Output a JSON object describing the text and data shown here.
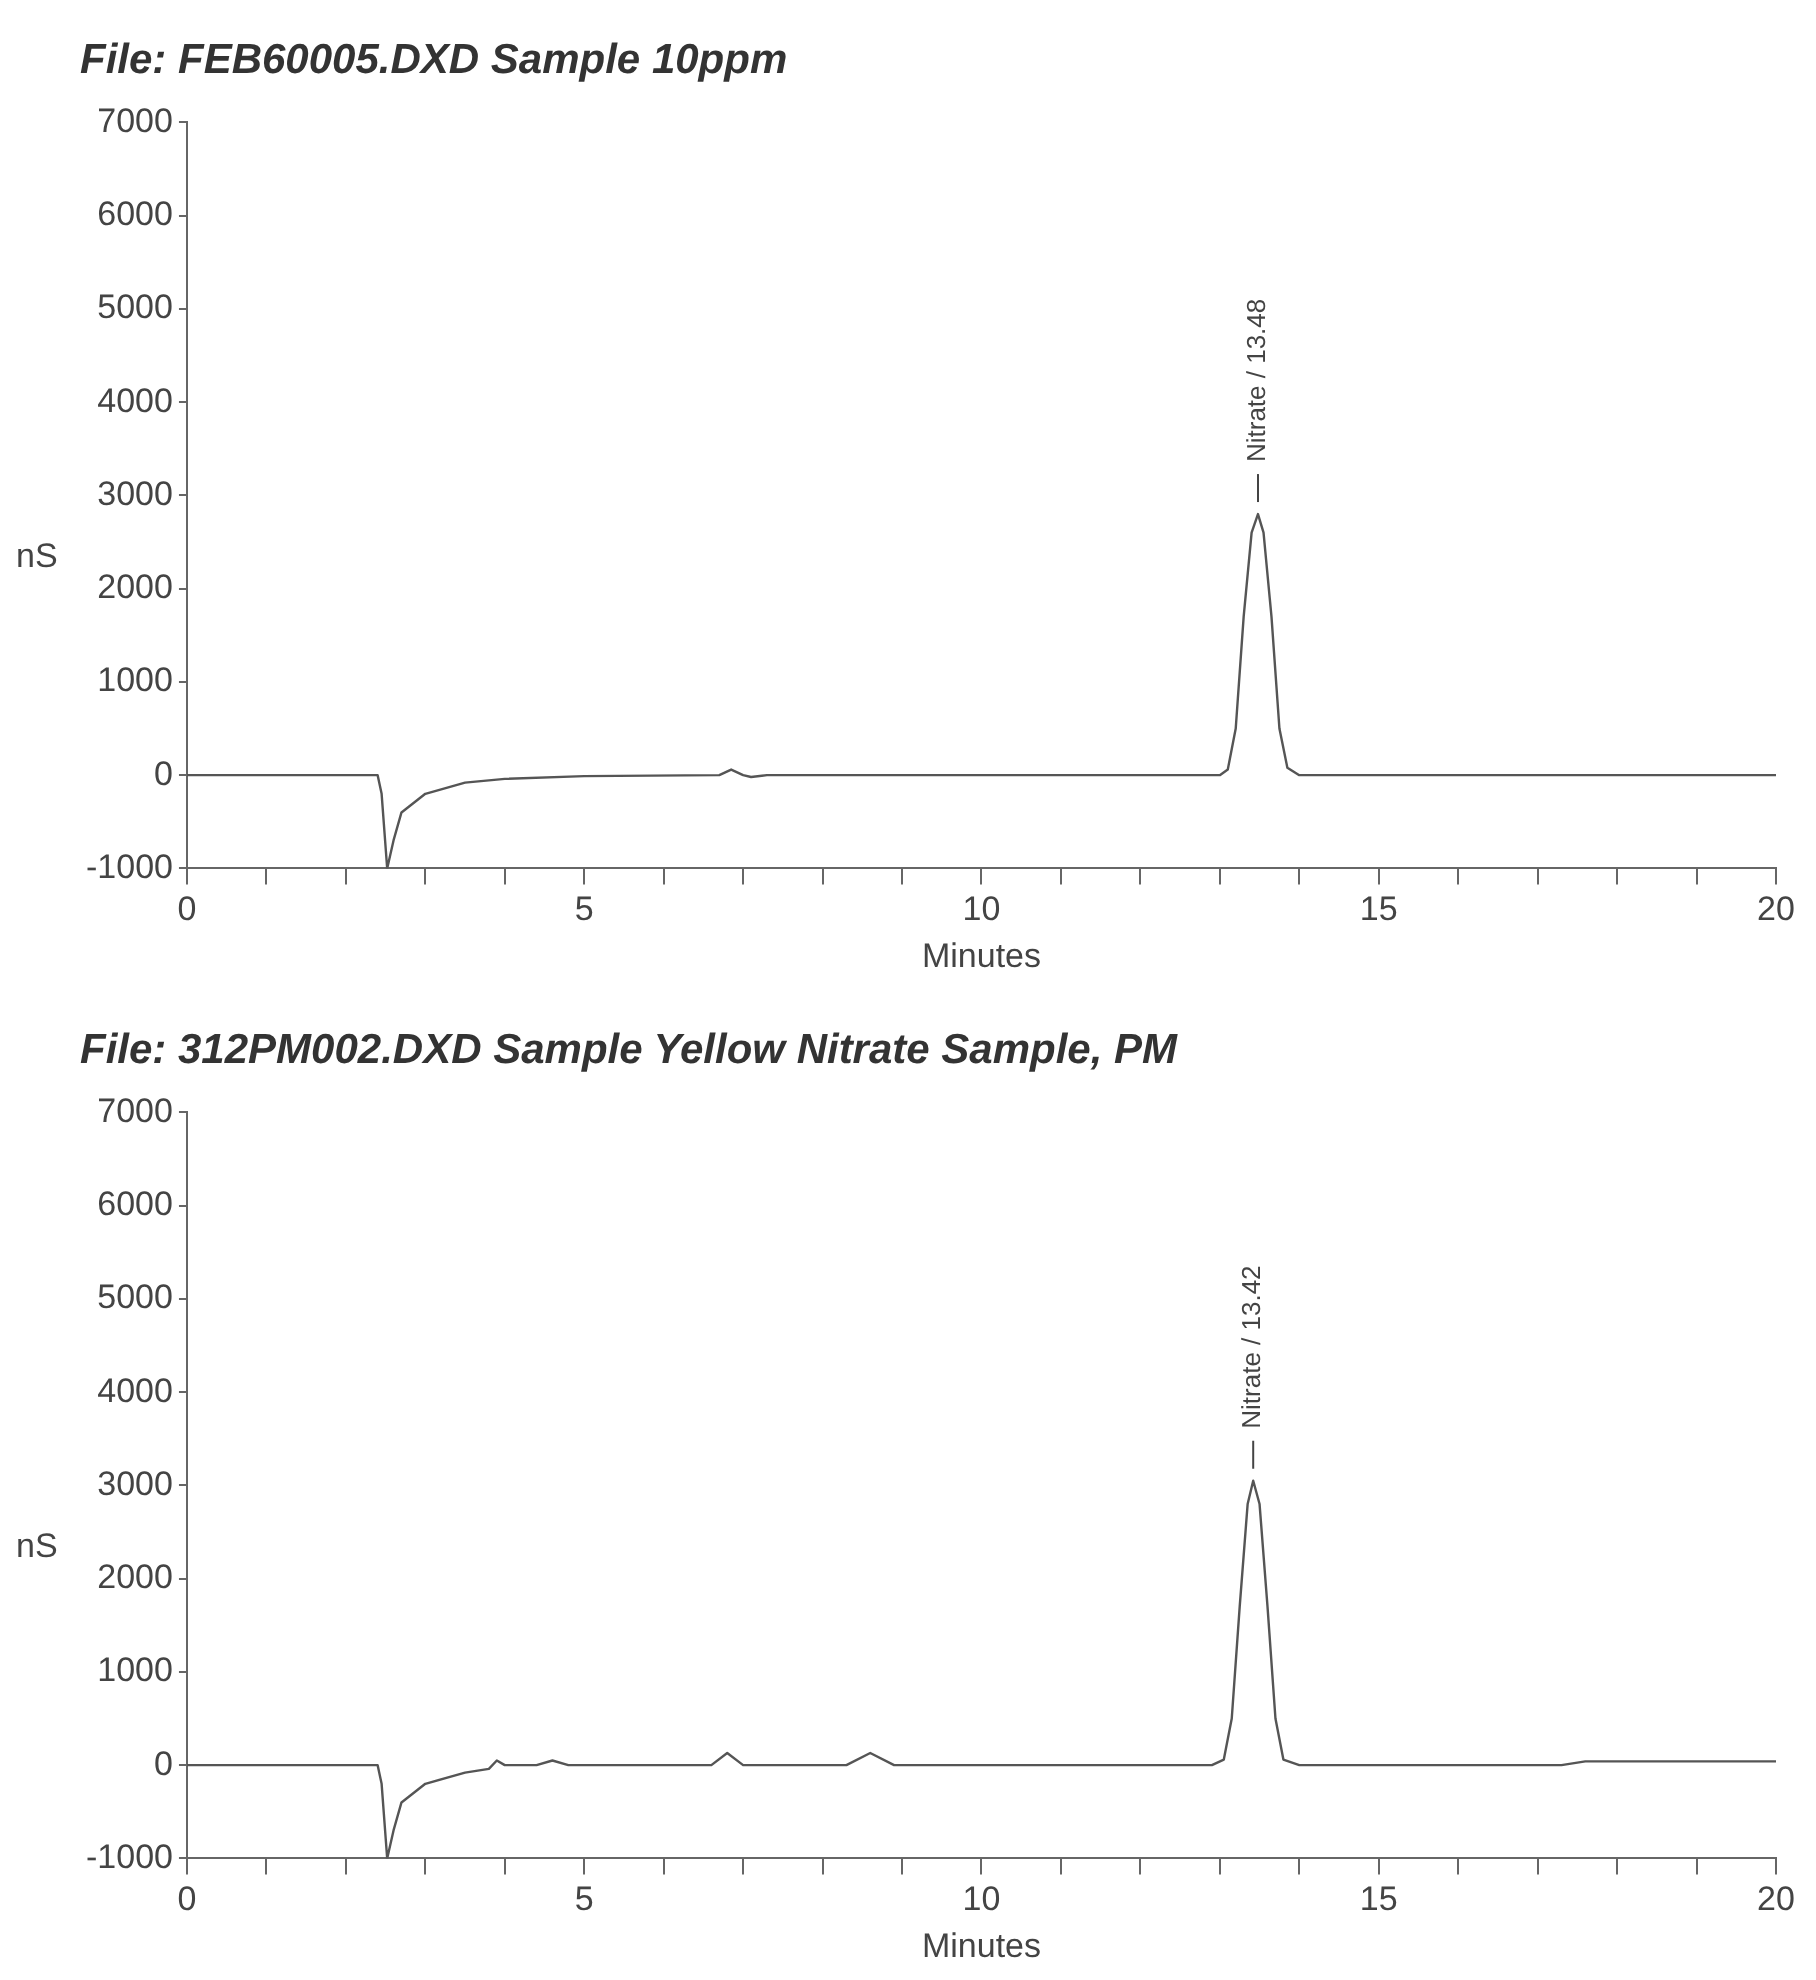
{
  "chart_data": [
    {
      "type": "line",
      "title": "File: FEB60005.DXD Sample 10ppm",
      "xlabel": "Minutes",
      "ylabel": "nS",
      "marker": "none",
      "grid": false,
      "legend": false,
      "xlim": [
        0,
        20
      ],
      "ylim": [
        -1000,
        7000
      ],
      "xticks": [
        0,
        {
          "value": 1,
          "label": null
        },
        {
          "value": 2,
          "label": null
        },
        {
          "value": 3,
          "label": null
        },
        {
          "value": 4,
          "label": null
        },
        5,
        {
          "value": 6,
          "label": null
        },
        {
          "value": 7,
          "label": null
        },
        {
          "value": 8,
          "label": null
        },
        {
          "value": 9,
          "label": null
        },
        10,
        {
          "value": 11,
          "label": null
        },
        {
          "value": 12,
          "label": null
        },
        {
          "value": 13,
          "label": null
        },
        {
          "value": 14,
          "label": null
        },
        15,
        {
          "value": 16,
          "label": null
        },
        {
          "value": 17,
          "label": null
        },
        {
          "value": 18,
          "label": null
        },
        {
          "value": 19,
          "label": null
        },
        20
      ],
      "yticks": [
        -1000,
        0,
        1000,
        2000,
        3000,
        4000,
        5000,
        6000,
        7000
      ],
      "annotations": [
        {
          "text": "Nitrate / 13.48",
          "x": 13.48,
          "y": 2800
        }
      ],
      "series": [
        {
          "color": "#555555",
          "x": [
            0,
            2.4,
            2.45,
            2.52,
            2.6,
            2.7,
            3.0,
            3.5,
            4,
            5,
            6.7,
            6.85,
            7.0,
            7.1,
            7.3,
            13.0,
            13.1,
            13.2,
            13.3,
            13.4,
            13.48,
            13.55,
            13.65,
            13.75,
            13.85,
            14,
            20
          ],
          "values": [
            0,
            0,
            -200,
            -1000,
            -700,
            -400,
            -200,
            -80,
            -40,
            -10,
            0,
            60,
            0,
            -20,
            0,
            0,
            60,
            500,
            1700,
            2600,
            2800,
            2600,
            1700,
            500,
            80,
            0,
            0
          ]
        }
      ]
    },
    {
      "type": "line",
      "title": "File: 312PM002.DXD Sample Yellow Nitrate Sample, PM",
      "xlabel": "Minutes",
      "ylabel": "nS",
      "marker": "none",
      "grid": false,
      "legend": false,
      "xlim": [
        0,
        20
      ],
      "ylim": [
        -1000,
        7000
      ],
      "xticks": [
        0,
        {
          "value": 1,
          "label": null
        },
        {
          "value": 2,
          "label": null
        },
        {
          "value": 3,
          "label": null
        },
        {
          "value": 4,
          "label": null
        },
        5,
        {
          "value": 6,
          "label": null
        },
        {
          "value": 7,
          "label": null
        },
        {
          "value": 8,
          "label": null
        },
        {
          "value": 9,
          "label": null
        },
        10,
        {
          "value": 11,
          "label": null
        },
        {
          "value": 12,
          "label": null
        },
        {
          "value": 13,
          "label": null
        },
        {
          "value": 14,
          "label": null
        },
        15,
        {
          "value": 16,
          "label": null
        },
        {
          "value": 17,
          "label": null
        },
        {
          "value": 18,
          "label": null
        },
        {
          "value": 19,
          "label": null
        },
        20
      ],
      "yticks": [
        -1000,
        0,
        1000,
        2000,
        3000,
        4000,
        5000,
        6000,
        7000
      ],
      "annotations": [
        {
          "text": "Nitrate / 13.42",
          "x": 13.42,
          "y": 3050
        }
      ],
      "series": [
        {
          "color": "#555555",
          "x": [
            0,
            2.4,
            2.45,
            2.52,
            2.6,
            2.7,
            3.0,
            3.5,
            3.8,
            3.9,
            4.0,
            4.4,
            4.6,
            4.8,
            5,
            6.6,
            6.8,
            7.0,
            8.3,
            8.6,
            8.9,
            12.9,
            13.05,
            13.15,
            13.25,
            13.35,
            13.42,
            13.5,
            13.6,
            13.7,
            13.8,
            14,
            17.3,
            17.6,
            20
          ],
          "values": [
            0,
            0,
            -200,
            -1000,
            -700,
            -400,
            -200,
            -80,
            -40,
            50,
            0,
            0,
            50,
            0,
            0,
            0,
            130,
            0,
            0,
            130,
            0,
            0,
            60,
            500,
            1700,
            2800,
            3050,
            2800,
            1700,
            500,
            60,
            0,
            0,
            40,
            40
          ]
        }
      ]
    }
  ]
}
